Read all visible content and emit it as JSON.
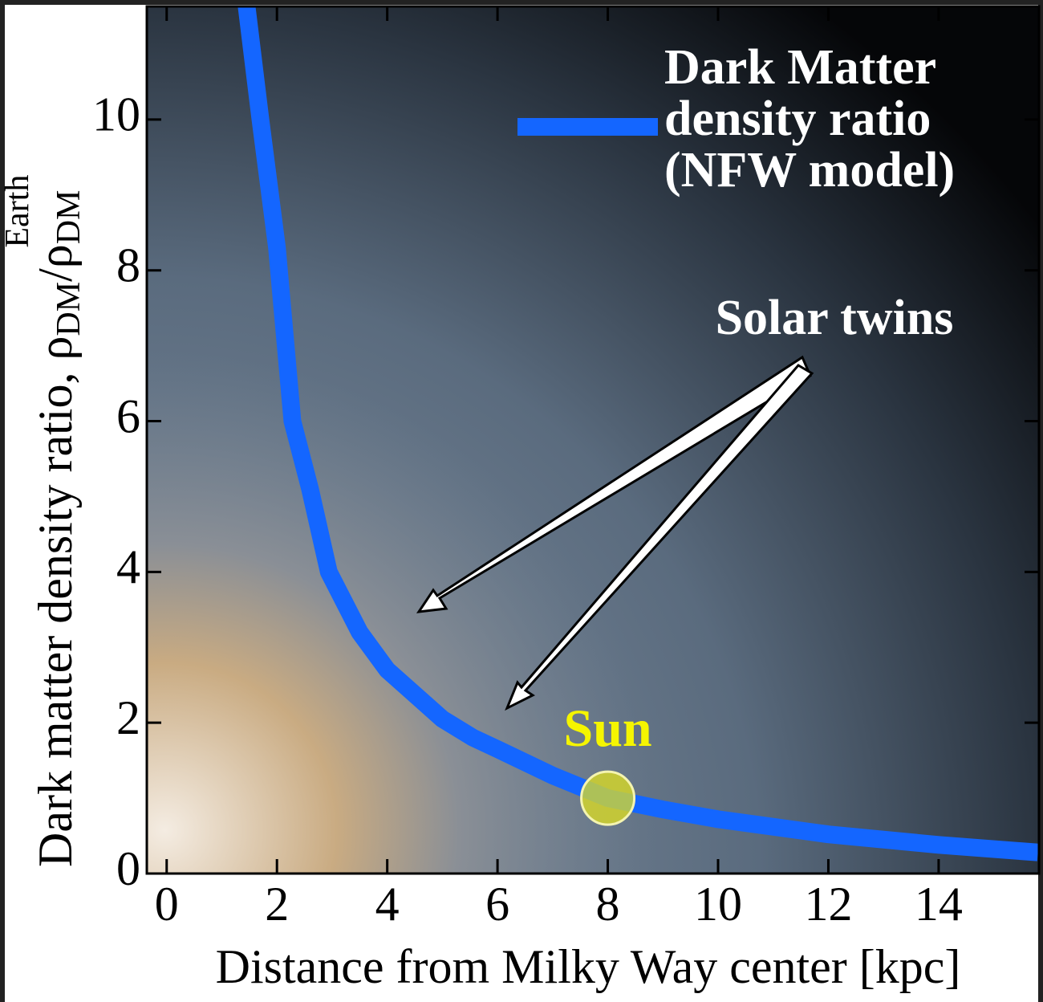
{
  "chart_data": {
    "type": "line",
    "x_label": "Distance from Milky Way center [kpc]",
    "y_label": {
      "text": "Dark matter density ratio, ρ",
      "sub1": "DM",
      "slash": "/ρ",
      "sub2": "DM",
      "sup2": "Earth"
    },
    "series": [
      {
        "name": "Dark Matter density ratio (NFW model)",
        "color": "#1466ff",
        "x": [
          1.45,
          1.7,
          2,
          2.28,
          2.6,
          2.94,
          3.5,
          4,
          5,
          5.56,
          6,
          7,
          8,
          9,
          10,
          12,
          14,
          15.8
        ],
        "values": [
          11.5,
          10,
          8.3,
          6,
          5.1,
          4,
          3.2,
          2.7,
          2.05,
          1.8,
          1.65,
          1.3,
          1.0,
          0.85,
          0.72,
          0.52,
          0.38,
          0.28
        ]
      }
    ],
    "sun": {
      "label": "Sun",
      "x": 8,
      "y": 1.0
    },
    "annotation": "Solar twins",
    "xlim": [
      -0.36,
      15.82
    ],
    "ylim": [
      0,
      11.5
    ],
    "xticks": [
      0,
      2,
      4,
      6,
      8,
      10,
      12,
      14
    ],
    "yticks": [
      0,
      2,
      4,
      6,
      8,
      10
    ]
  }
}
